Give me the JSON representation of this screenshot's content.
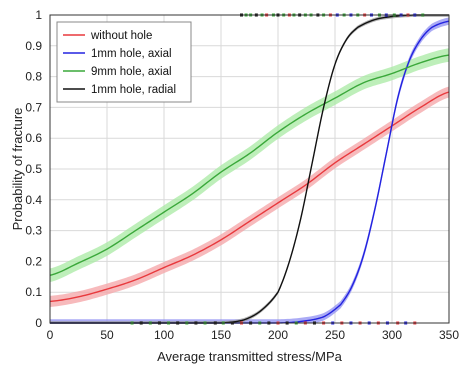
{
  "chart_data": {
    "type": "line",
    "xlabel": "Average transmitted stress/MPa",
    "ylabel": "Probability of fracture",
    "xlim": [
      0,
      350
    ],
    "ylim": [
      0,
      1
    ],
    "xticks": [
      "0",
      "50",
      "100",
      "150",
      "200",
      "250",
      "300",
      "350"
    ],
    "yticks": [
      "0",
      "0.1",
      "0.2",
      "0.3",
      "0.4",
      "0.5",
      "0.6",
      "0.7",
      "0.8",
      "0.9",
      "1"
    ],
    "grid": true,
    "legend_position": "top-left",
    "series": [
      {
        "name": "without hole",
        "color": "#e8393d",
        "band_color": "#f4a3a6",
        "x": [
          0,
          25,
          50,
          75,
          100,
          125,
          150,
          175,
          200,
          225,
          250,
          275,
          300,
          325,
          350
        ],
        "y": [
          0.07,
          0.085,
          0.11,
          0.14,
          0.18,
          0.22,
          0.27,
          0.33,
          0.39,
          0.45,
          0.52,
          0.58,
          0.64,
          0.7,
          0.75
        ]
      },
      {
        "name": "1mm hole, axial",
        "color": "#2323e0",
        "band_color": "#8f8ff2",
        "x": [
          0,
          200,
          220,
          240,
          255,
          265,
          275,
          285,
          295,
          305,
          315,
          325,
          335,
          350
        ],
        "y": [
          0,
          0.0,
          0.005,
          0.02,
          0.06,
          0.12,
          0.22,
          0.37,
          0.55,
          0.73,
          0.85,
          0.92,
          0.96,
          0.98
        ]
      },
      {
        "name": "9mm hole, axial",
        "color": "#3aa83a",
        "band_color": "#a8eaa3",
        "x": [
          0,
          25,
          50,
          75,
          100,
          125,
          150,
          175,
          200,
          225,
          250,
          275,
          300,
          325,
          350
        ],
        "y": [
          0.155,
          0.195,
          0.24,
          0.3,
          0.36,
          0.42,
          0.49,
          0.55,
          0.62,
          0.68,
          0.73,
          0.78,
          0.81,
          0.845,
          0.87
        ]
      },
      {
        "name": "1mm hole, radial",
        "color": "#111111",
        "band_color": "#999999",
        "x": [
          0,
          150,
          170,
          185,
          200,
          210,
          220,
          230,
          240,
          250,
          260,
          270,
          285,
          300,
          320,
          350
        ],
        "y": [
          0,
          0.0,
          0.01,
          0.04,
          0.1,
          0.2,
          0.34,
          0.52,
          0.7,
          0.84,
          0.92,
          0.96,
          0.985,
          0.995,
          1.0,
          1.0
        ]
      }
    ],
    "rug_top": [
      {
        "x": 168,
        "color": "#111111"
      },
      {
        "x": 172,
        "color": "#3aa83a"
      },
      {
        "x": 176,
        "color": "#3aa83a"
      },
      {
        "x": 181,
        "color": "#111111"
      },
      {
        "x": 186,
        "color": "#3aa83a"
      },
      {
        "x": 190,
        "color": "#e8393d"
      },
      {
        "x": 196,
        "color": "#3aa83a"
      },
      {
        "x": 200,
        "color": "#111111"
      },
      {
        "x": 205,
        "color": "#3aa83a"
      },
      {
        "x": 210,
        "color": "#e8393d"
      },
      {
        "x": 214,
        "color": "#3aa83a"
      },
      {
        "x": 219,
        "color": "#111111"
      },
      {
        "x": 224,
        "color": "#3aa83a"
      },
      {
        "x": 229,
        "color": "#3aa83a"
      },
      {
        "x": 235,
        "color": "#111111"
      },
      {
        "x": 240,
        "color": "#3aa83a"
      },
      {
        "x": 246,
        "color": "#e8393d"
      },
      {
        "x": 252,
        "color": "#2323e0"
      },
      {
        "x": 258,
        "color": "#3aa83a"
      },
      {
        "x": 264,
        "color": "#2323e0"
      },
      {
        "x": 270,
        "color": "#3aa83a"
      },
      {
        "x": 276,
        "color": "#e8393d"
      },
      {
        "x": 282,
        "color": "#2323e0"
      },
      {
        "x": 289,
        "color": "#3aa83a"
      },
      {
        "x": 295,
        "color": "#2323e0"
      },
      {
        "x": 302,
        "color": "#3aa83a"
      },
      {
        "x": 308,
        "color": "#2323e0"
      },
      {
        "x": 314,
        "color": "#e8393d"
      },
      {
        "x": 320,
        "color": "#2323e0"
      },
      {
        "x": 327,
        "color": "#3aa83a"
      }
    ],
    "rug_bottom": [
      {
        "x": 72,
        "color": "#3aa83a"
      },
      {
        "x": 80,
        "color": "#111111"
      },
      {
        "x": 88,
        "color": "#3aa83a"
      },
      {
        "x": 96,
        "color": "#111111"
      },
      {
        "x": 104,
        "color": "#3aa83a"
      },
      {
        "x": 112,
        "color": "#111111"
      },
      {
        "x": 120,
        "color": "#3aa83a"
      },
      {
        "x": 128,
        "color": "#111111"
      },
      {
        "x": 136,
        "color": "#3aa83a"
      },
      {
        "x": 145,
        "color": "#111111"
      },
      {
        "x": 152,
        "color": "#3aa83a"
      },
      {
        "x": 160,
        "color": "#111111"
      },
      {
        "x": 168,
        "color": "#e8393d"
      },
      {
        "x": 176,
        "color": "#111111"
      },
      {
        "x": 184,
        "color": "#3aa83a"
      },
      {
        "x": 192,
        "color": "#111111"
      },
      {
        "x": 200,
        "color": "#e8393d"
      },
      {
        "x": 208,
        "color": "#111111"
      },
      {
        "x": 216,
        "color": "#3aa83a"
      },
      {
        "x": 224,
        "color": "#e8393d"
      },
      {
        "x": 232,
        "color": "#111111"
      },
      {
        "x": 240,
        "color": "#e8393d"
      },
      {
        "x": 248,
        "color": "#2323e0"
      },
      {
        "x": 256,
        "color": "#e8393d"
      },
      {
        "x": 264,
        "color": "#2323e0"
      },
      {
        "x": 272,
        "color": "#e8393d"
      },
      {
        "x": 280,
        "color": "#2323e0"
      },
      {
        "x": 288,
        "color": "#e8393d"
      },
      {
        "x": 296,
        "color": "#2323e0"
      },
      {
        "x": 305,
        "color": "#e8393d"
      },
      {
        "x": 312,
        "color": "#2323e0"
      },
      {
        "x": 320,
        "color": "#e8393d"
      }
    ]
  }
}
